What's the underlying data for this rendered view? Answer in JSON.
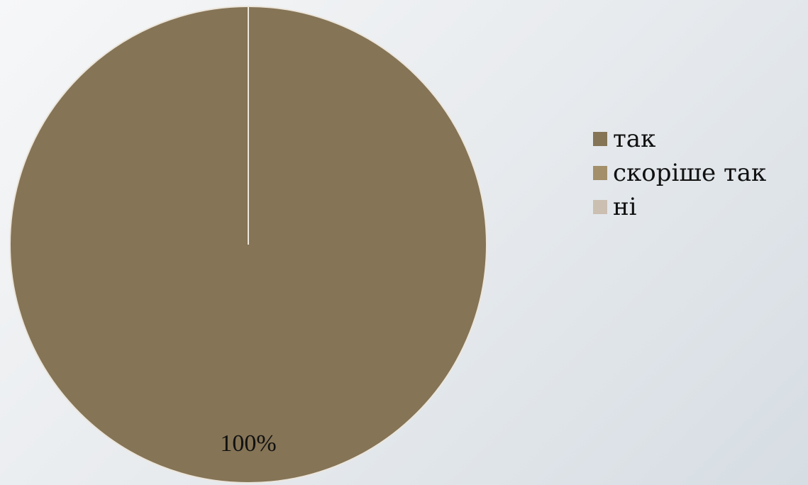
{
  "chart_data": {
    "type": "pie",
    "categories": [
      "так",
      "скоріше так",
      "ні"
    ],
    "values": [
      100,
      0,
      0
    ],
    "data_labels": [
      "100%",
      "",
      ""
    ],
    "colors": [
      "#857456",
      "#A38F6A",
      "#CBBFB1"
    ],
    "legend_position": "right"
  }
}
